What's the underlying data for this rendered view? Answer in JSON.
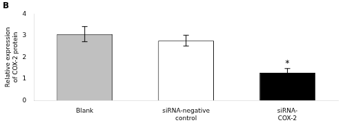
{
  "chart_data": {
    "type": "bar",
    "title": "B",
    "categories": [
      "Blank",
      "siRNA-negative\ncontrol",
      "siRNA-\nCOX-2"
    ],
    "values": [
      3.07,
      2.77,
      1.28
    ],
    "errors": [
      0.35,
      0.25,
      0.2
    ],
    "colors": [
      "#c0c0c0",
      "#ffffff",
      "#000000"
    ],
    "ylabel": "Relative expression\nof COX-2 protein",
    "ylim": [
      0,
      4
    ],
    "yticks": [
      0,
      1,
      2,
      3,
      4
    ],
    "grid": false,
    "annotations": [
      {
        "text": "*",
        "category": "siRNA-\nCOX-2",
        "y": 1.52
      }
    ]
  }
}
